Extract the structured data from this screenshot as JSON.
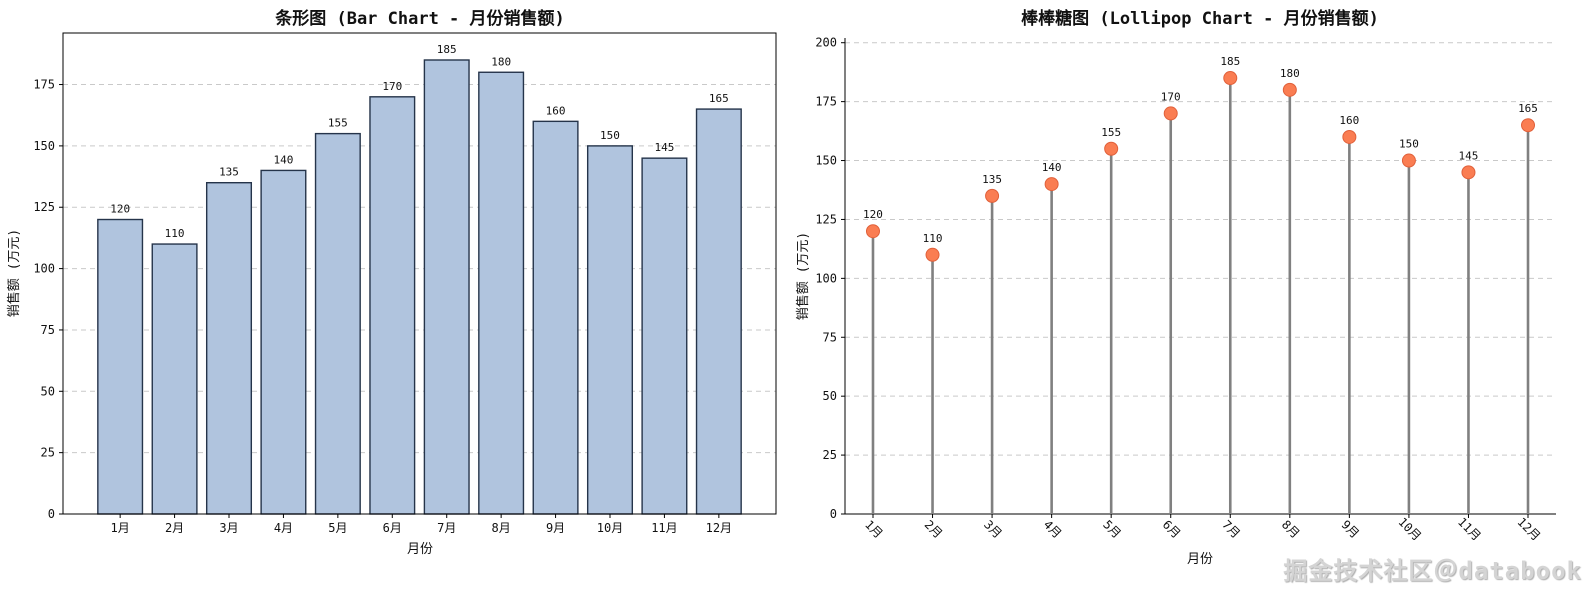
{
  "watermark": {
    "text": "掘金技术社区＠databook"
  },
  "chart_data": [
    {
      "type": "bar",
      "title": "条形图 (Bar Chart - 月份销售额)",
      "xlabel": "月份",
      "ylabel": "销售额 (万元)",
      "categories": [
        "1月",
        "2月",
        "3月",
        "4月",
        "5月",
        "6月",
        "7月",
        "8月",
        "9月",
        "10月",
        "11月",
        "12月"
      ],
      "values": [
        120,
        110,
        135,
        140,
        155,
        170,
        185,
        180,
        160,
        150,
        145,
        165
      ],
      "ylim": [
        0,
        196
      ],
      "yticks": [
        0,
        25,
        50,
        75,
        100,
        125,
        150,
        175
      ],
      "grid": "horizontal-dashed",
      "legend": "none",
      "value_labels": true,
      "bar_fill": "#b0c4de",
      "bar_edge": "#25344a"
    },
    {
      "type": "lollipop",
      "title": "棒棒糖图 (Lollipop Chart - 月份销售额)",
      "xlabel": "月份",
      "ylabel": "销售额 (万元)",
      "categories": [
        "1月",
        "2月",
        "3月",
        "4月",
        "5月",
        "6月",
        "7月",
        "8月",
        "9月",
        "10月",
        "11月",
        "12月"
      ],
      "values": [
        120,
        110,
        135,
        140,
        155,
        170,
        185,
        180,
        160,
        150,
        145,
        165
      ],
      "ylim": [
        0,
        202
      ],
      "yticks": [
        0,
        25,
        50,
        75,
        100,
        125,
        150,
        175,
        200
      ],
      "grid": "horizontal-dashed",
      "legend": "none",
      "value_labels": true,
      "xtick_rotation": 45,
      "stem_color": "#808080",
      "dot_fill": "#fa7d52",
      "dot_edge": "#e0603a"
    }
  ]
}
